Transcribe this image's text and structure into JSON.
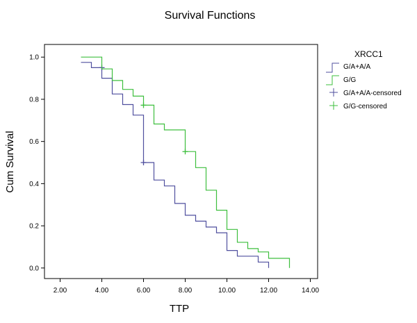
{
  "chart_data": {
    "type": "line",
    "subtype": "kaplan-meier-step",
    "title": "Survival Functions",
    "xlabel": "TTP",
    "ylabel": "Cum Survival",
    "xlim": [
      1.25,
      14.35
    ],
    "ylim": [
      -0.05,
      1.06
    ],
    "x_ticks": [
      2,
      4,
      6,
      8,
      10,
      12,
      14
    ],
    "x_tick_labels": [
      "2.00",
      "4.00",
      "6.00",
      "8.00",
      "10.00",
      "12.00",
      "14.00"
    ],
    "y_ticks": [
      0,
      0.2,
      0.4,
      0.6,
      0.8,
      1.0
    ],
    "y_tick_labels": [
      "0.0",
      "0.2",
      "0.4",
      "0.6",
      "0.8",
      "1.0"
    ],
    "grid": false,
    "legend": {
      "title": "XRCC1",
      "position": "right",
      "entries": [
        "G/A+A/A",
        "G/G",
        "G/A+A/A-censored",
        "G/G-censored"
      ]
    },
    "series": [
      {
        "name": "G/A+A/A",
        "color": "#4f4f9e",
        "steps": [
          [
            3.0,
            0.975
          ],
          [
            3.5,
            0.95
          ],
          [
            4.0,
            0.9
          ],
          [
            4.5,
            0.825
          ],
          [
            5.0,
            0.775
          ],
          [
            5.5,
            0.725
          ],
          [
            6.0,
            0.5
          ],
          [
            6.5,
            0.417
          ],
          [
            7.0,
            0.389
          ],
          [
            7.5,
            0.306
          ],
          [
            8.0,
            0.25
          ],
          [
            8.5,
            0.222
          ],
          [
            9.0,
            0.194
          ],
          [
            9.5,
            0.167
          ],
          [
            10.0,
            0.083
          ],
          [
            10.5,
            0.056
          ],
          [
            11.5,
            0.028
          ],
          [
            12.0,
            0.0
          ]
        ],
        "censored": [
          [
            4.0,
            0.95
          ],
          [
            6.0,
            0.5
          ]
        ]
      },
      {
        "name": "G/G",
        "color": "#3dbf3d",
        "steps": [
          [
            3.0,
            1.0
          ],
          [
            4.0,
            0.944
          ],
          [
            4.5,
            0.889
          ],
          [
            5.0,
            0.847
          ],
          [
            5.5,
            0.815
          ],
          [
            6.0,
            0.772
          ],
          [
            6.5,
            0.683
          ],
          [
            7.0,
            0.655
          ],
          [
            8.0,
            0.552
          ],
          [
            8.5,
            0.476
          ],
          [
            9.0,
            0.369
          ],
          [
            9.5,
            0.274
          ],
          [
            10.0,
            0.183
          ],
          [
            10.5,
            0.122
          ],
          [
            11.0,
            0.092
          ],
          [
            11.5,
            0.076
          ],
          [
            12.0,
            0.046
          ],
          [
            13.0,
            0.0
          ]
        ],
        "censored": [
          [
            6.0,
            0.772
          ],
          [
            8.0,
            0.552
          ]
        ]
      }
    ]
  }
}
